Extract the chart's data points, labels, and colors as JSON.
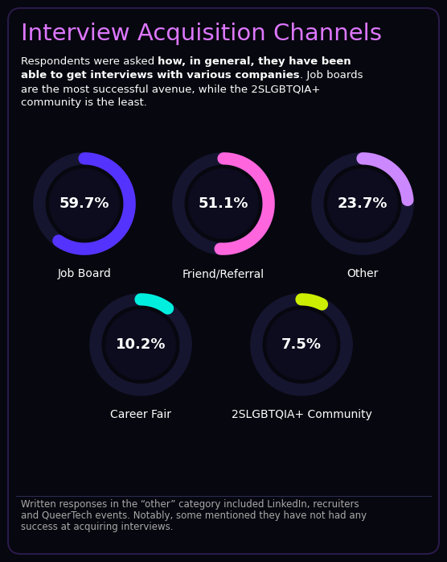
{
  "title": "Interview Acquisition Channels",
  "charts": [
    {
      "label": "Job Board",
      "value": 59.7,
      "arc_color": "#5533ff"
    },
    {
      "label": "Friend/Referral",
      "value": 51.1,
      "arc_color": "#ff66dd"
    },
    {
      "label": "Other",
      "value": 23.7,
      "arc_color": "#cc88ff"
    },
    {
      "label": "Career Fair",
      "value": 10.2,
      "arc_color": "#00eedd"
    },
    {
      "label": "2SLGBTQIA+ Community",
      "value": 7.5,
      "arc_color": "#ccee00"
    }
  ],
  "bg_color": "#07070f",
  "ring_bg_color": "#151530",
  "inner_circle_color": "#0c0c1e",
  "border_color": "#2a1a4a",
  "title_color": "#dd77ff",
  "text_color": "#ffffff",
  "footnote_color": "#aaaaaa",
  "subtitle_normal": "Respondents were asked ",
  "subtitle_bold": "how, in general, they have been able to get interviews with various companies",
  "subtitle_rest": ". Job boards are the most successful avenue, while the 2SLGBTQIA+ community is the least.",
  "footnote_lines": [
    "Written responses in the “other” category included LinkedIn, recruiters",
    "and QueerTech events. Notably, some mentioned they have not had any",
    "success at acquiring interviews."
  ]
}
